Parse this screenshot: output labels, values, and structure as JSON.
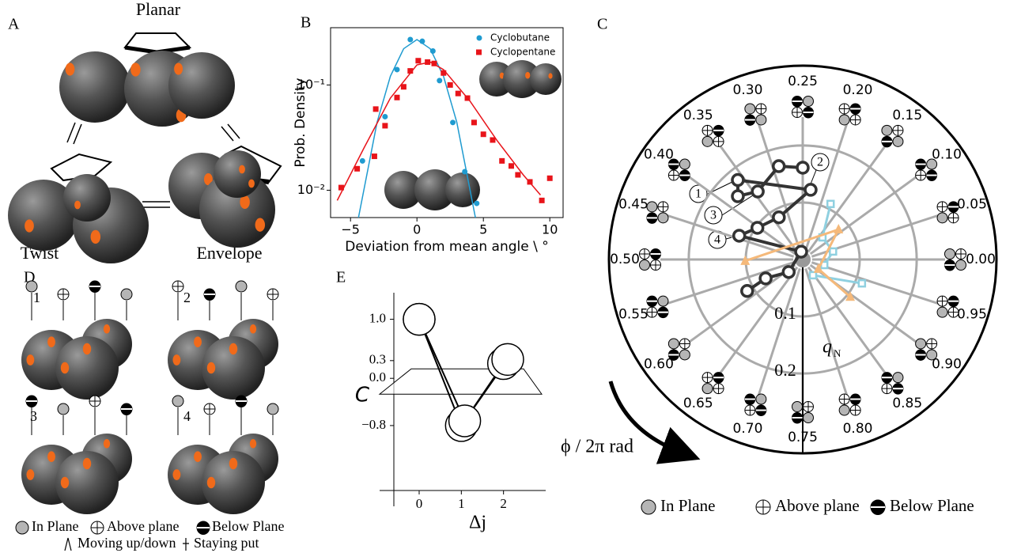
{
  "panel_labels": {
    "a": "A",
    "b": "B",
    "c": "C",
    "d": "D",
    "e": "E"
  },
  "panel_a": {
    "planar": "Planar",
    "twist": "Twist",
    "envelope": "Envelope"
  },
  "panel_d": {
    "numbers": [
      "1",
      "2",
      "3",
      "4"
    ],
    "legend": [
      "In Plane",
      "Above plane",
      "Below Plane"
    ],
    "legend_motion": [
      "Moving up/down",
      "Staying put"
    ]
  },
  "chart_data": [
    {
      "type": "scatter",
      "xlabel": "Deviation from mean angle \\ °",
      "ylabel": "Prob. Density",
      "xlim": [
        -6.5,
        11
      ],
      "ylim": [
        0.0055,
        0.35
      ],
      "log_y": true,
      "xticks": [
        {
          "value": -5,
          "label": "−5"
        },
        0,
        5,
        10
      ],
      "yticks": [
        {
          "value": 0.01,
          "label": "10⁻²"
        },
        {
          "value": 0.1,
          "label": "10⁻¹"
        }
      ],
      "legend": "upper right",
      "series": [
        {
          "name": "Cyclobutane",
          "color": "#1f9bd0",
          "marker": "circle",
          "x": [
            -4.1,
            -2.4,
            -1.5,
            -0.5,
            0.4,
            1.2,
            1.7,
            2.7,
            3.6,
            4.5
          ],
          "values": [
            0.019,
            0.05,
            0.14,
            0.27,
            0.26,
            0.21,
            0.11,
            0.044,
            0.015,
            0.0075
          ]
        },
        {
          "name": "Cyclopentane",
          "color": "#e8141a",
          "marker": "square",
          "x": [
            -5.7,
            -4.5,
            -3.2,
            -3.1,
            -2.4,
            -1.5,
            -1,
            -0.5,
            0.1,
            0.8,
            1.3,
            2,
            2.5,
            3.1,
            3.8,
            4.3,
            5,
            5.7,
            6.4,
            7.1,
            7.6,
            8.5,
            9.4,
            10
          ],
          "values": [
            0.0106,
            0.016,
            0.021,
            0.059,
            0.041,
            0.076,
            0.096,
            0.136,
            0.17,
            0.165,
            0.16,
            0.13,
            0.1,
            0.083,
            0.075,
            0.044,
            0.034,
            0.03,
            0.019,
            0.017,
            0.014,
            0.012,
            0.008,
            0.013
          ]
        }
      ],
      "fits": [
        {
          "color": "#1f9bd0",
          "x": [
            -4.4,
            -3,
            -2,
            -1,
            0,
            1,
            2,
            3,
            4.4
          ],
          "values": [
            0.0055,
            0.0442,
            0.121,
            0.221,
            0.27,
            0.221,
            0.121,
            0.0442,
            0.0055
          ]
        },
        {
          "color": "#e8141a",
          "x": [
            -6,
            -4,
            -2,
            0,
            1,
            2,
            4,
            6,
            8,
            9.3
          ],
          "values": [
            0.008,
            0.025,
            0.075,
            0.155,
            0.165,
            0.14,
            0.07,
            0.03,
            0.014,
            0.009
          ]
        }
      ]
    },
    {
      "type": "line",
      "xlabel": "Δj",
      "ylabel": "C",
      "xlim": [
        -0.6,
        3
      ],
      "ylim": [
        -1.9,
        1.45
      ],
      "xticks": [
        0,
        1,
        2
      ],
      "yticks": [
        {
          "value": -0.8,
          "label": "−0.8"
        },
        {
          "value": 0,
          "label": "0.0"
        },
        0.3,
        {
          "value": 1,
          "label": "1.0"
        }
      ],
      "series": [
        {
          "color": "#000000",
          "x": [
            0,
            1,
            2
          ],
          "values": [
            1,
            -0.8,
            0.25
          ]
        },
        {
          "color": "#000000",
          "x": [
            0,
            1.08,
            2.1
          ],
          "values": [
            1,
            -0.72,
            0.32
          ]
        }
      ]
    },
    {
      "type": "polar",
      "radial_label": "q",
      "radial_label_sub": "N",
      "angle_label": "ϕ / 2π rad",
      "rlim": [
        0,
        0.34
      ],
      "rticks": [
        0.1,
        0.2
      ],
      "angle_ticks": [
        {
          "value": 0,
          "label": "0.00"
        },
        0.05,
        {
          "value": 0.1,
          "label": "0.10"
        },
        0.15,
        {
          "value": 0.2,
          "label": "0.20"
        },
        0.25,
        {
          "value": 0.3,
          "label": "0.30"
        },
        0.35,
        {
          "value": 0.4,
          "label": "0.40"
        },
        0.45,
        {
          "value": 0.5,
          "label": "0.50"
        },
        0.55,
        {
          "value": 0.6,
          "label": "0.60"
        },
        0.65,
        {
          "value": 0.7,
          "label": "0.70"
        },
        0.75,
        {
          "value": 0.8,
          "label": "0.80"
        },
        0.85,
        {
          "value": 0.9,
          "label": "0.90"
        },
        0.95
      ],
      "annotations": [
        "1",
        "2",
        "3",
        "4"
      ],
      "legend": [
        "In Plane",
        "Above plane",
        "Below Plane"
      ],
      "series": [
        {
          "color": "#333333",
          "marker": "circle",
          "phi": [
            0.25,
            0.29,
            0.343,
            0.377,
            0.359,
            0.232,
            0.332,
            0.403,
            0.443,
            0.281,
            0.616,
            0.575,
            0.582
          ],
          "values": [
            0.161,
            0.169,
            0.143,
            0.159,
            0.18,
            0.123,
            0.085,
            0.097,
            0.119,
            0.014,
            0.033,
            0.073,
            0.112
          ]
        },
        {
          "color": "#8fd0e0",
          "marker": "square",
          "phi": [
            0.176,
            0.134,
            0.041,
            0.96,
            0.842,
            0.939
          ],
          "values": [
            0.109,
            0.052,
            0.055,
            0.039,
            0.033,
            0.112
          ]
        },
        {
          "color": "#f5b97a",
          "marker": "triangle",
          "phi": [
            0.504,
            0.111,
            0.914,
            0.894
          ],
          "values": [
            0.101,
            0.082,
            0.032,
            0.106
          ]
        }
      ]
    }
  ]
}
